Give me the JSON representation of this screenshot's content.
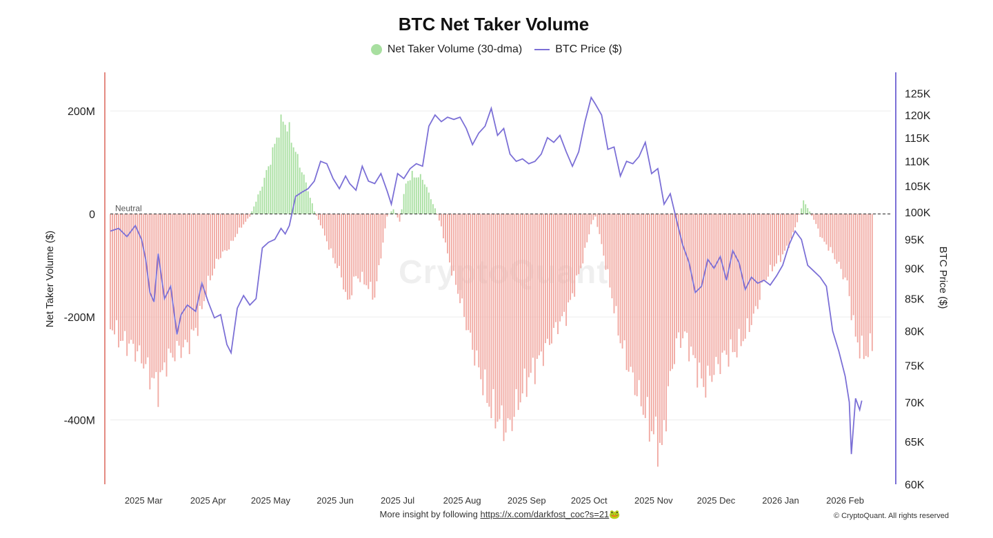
{
  "footer": {
    "prefix": "More insight by following",
    "link": "https://x.com/darkfost_coc?s=21",
    "emoji": "🐸",
    "copyright": "© CryptoQuant. All rights reserved"
  },
  "watermark": "CryptoQuant",
  "colors": {
    "positive_bar": "#a8dfa0",
    "negative_bar": "#f1aaa3",
    "price_line": "#7b6fd6",
    "left_axis": "#e48a82",
    "right_axis": "#7b6fd6"
  },
  "chart_data": {
    "type": "bar+line",
    "title": "BTC Net Taker Volume",
    "legend": [
      "Net Taker Volume (30-dma)",
      "BTC Price ($)"
    ],
    "ylabel_left": "Net Taker Volume ($)",
    "ylabel_right": "BTC Price ($)",
    "yticks_left": [
      {
        "value": 200000000,
        "label": "200M"
      },
      {
        "value": 0,
        "label": "0"
      },
      {
        "value": -200000000,
        "label": "-200M"
      },
      {
        "value": -400000000,
        "label": "-400M"
      }
    ],
    "ylim_left": [
      -525000000,
      275000000
    ],
    "yticks_right": [
      {
        "value": 125000,
        "label": "125K"
      },
      {
        "value": 120000,
        "label": "120K"
      },
      {
        "value": 115000,
        "label": "115K"
      },
      {
        "value": 110000,
        "label": "110K"
      },
      {
        "value": 105000,
        "label": "105K"
      },
      {
        "value": 100000,
        "label": "100K"
      },
      {
        "value": 95000,
        "label": "95K"
      },
      {
        "value": 90000,
        "label": "90K"
      },
      {
        "value": 85000,
        "label": "85K"
      },
      {
        "value": 80000,
        "label": "80K"
      },
      {
        "value": 75000,
        "label": "75K"
      },
      {
        "value": 70000,
        "label": "70K"
      },
      {
        "value": 65000,
        "label": "65K"
      },
      {
        "value": 60000,
        "label": "60K"
      }
    ],
    "ylim_right": [
      60000,
      130000
    ],
    "y_right_scale": "log",
    "xlim_days": [
      0,
      375
    ],
    "xticks": [
      {
        "day": 16,
        "label": "2025 Mar"
      },
      {
        "day": 47,
        "label": "2025 Apr"
      },
      {
        "day": 77,
        "label": "2025 May"
      },
      {
        "day": 108,
        "label": "2025 Jun"
      },
      {
        "day": 138,
        "label": "2025 Jul"
      },
      {
        "day": 169,
        "label": "2025 Aug"
      },
      {
        "day": 200,
        "label": "2025 Sep"
      },
      {
        "day": 230,
        "label": "2025 Oct"
      },
      {
        "day": 261,
        "label": "2025 Nov"
      },
      {
        "day": 291,
        "label": "2025 Dec"
      },
      {
        "day": 322,
        "label": "2026 Jan"
      },
      {
        "day": 353,
        "label": "2026 Feb"
      }
    ],
    "neutral_label": "Neutral",
    "net_taker_volume_anchors": [
      [
        0,
        -215000000
      ],
      [
        5,
        -245000000
      ],
      [
        10,
        -255000000
      ],
      [
        15,
        -280000000
      ],
      [
        20,
        -320000000
      ],
      [
        23,
        -335000000
      ],
      [
        27,
        -285000000
      ],
      [
        32,
        -265000000
      ],
      [
        37,
        -255000000
      ],
      [
        42,
        -215000000
      ],
      [
        47,
        -135000000
      ],
      [
        52,
        -85000000
      ],
      [
        57,
        -65000000
      ],
      [
        62,
        -30000000
      ],
      [
        67,
        -5000000
      ],
      [
        72,
        45000000
      ],
      [
        77,
        105000000
      ],
      [
        80,
        150000000
      ],
      [
        83,
        185000000
      ],
      [
        86,
        160000000
      ],
      [
        89,
        120000000
      ],
      [
        94,
        60000000
      ],
      [
        98,
        5000000
      ],
      [
        101,
        -20000000
      ],
      [
        106,
        -75000000
      ],
      [
        111,
        -120000000
      ],
      [
        114,
        -175000000
      ],
      [
        118,
        -120000000
      ],
      [
        122,
        -130000000
      ],
      [
        127,
        -160000000
      ],
      [
        130,
        -80000000
      ],
      [
        133,
        -5000000
      ],
      [
        136,
        10000000
      ],
      [
        139,
        -15000000
      ],
      [
        142,
        60000000
      ],
      [
        145,
        75000000
      ],
      [
        150,
        70000000
      ],
      [
        153,
        40000000
      ],
      [
        156,
        10000000
      ],
      [
        159,
        -25000000
      ],
      [
        163,
        -95000000
      ],
      [
        168,
        -165000000
      ],
      [
        173,
        -245000000
      ],
      [
        178,
        -315000000
      ],
      [
        183,
        -380000000
      ],
      [
        188,
        -405000000
      ],
      [
        191,
        -420000000
      ],
      [
        195,
        -375000000
      ],
      [
        200,
        -325000000
      ],
      [
        205,
        -290000000
      ],
      [
        210,
        -255000000
      ],
      [
        215,
        -215000000
      ],
      [
        219,
        -195000000
      ],
      [
        223,
        -145000000
      ],
      [
        227,
        -90000000
      ],
      [
        231,
        -20000000
      ],
      [
        233,
        -5000000
      ],
      [
        236,
        -60000000
      ],
      [
        240,
        -140000000
      ],
      [
        245,
        -245000000
      ],
      [
        250,
        -310000000
      ],
      [
        255,
        -365000000
      ],
      [
        259,
        -410000000
      ],
      [
        262,
        -435000000
      ],
      [
        265,
        -460000000
      ],
      [
        268,
        -345000000
      ],
      [
        272,
        -250000000
      ],
      [
        276,
        -235000000
      ],
      [
        280,
        -280000000
      ],
      [
        285,
        -335000000
      ],
      [
        290,
        -305000000
      ],
      [
        295,
        -275000000
      ],
      [
        300,
        -265000000
      ],
      [
        305,
        -235000000
      ],
      [
        310,
        -190000000
      ],
      [
        314,
        -130000000
      ],
      [
        318,
        -105000000
      ],
      [
        322,
        -85000000
      ],
      [
        326,
        -60000000
      ],
      [
        330,
        -15000000
      ],
      [
        333,
        25000000
      ],
      [
        336,
        5000000
      ],
      [
        339,
        -20000000
      ],
      [
        342,
        -50000000
      ],
      [
        346,
        -70000000
      ],
      [
        350,
        -100000000
      ],
      [
        354,
        -135000000
      ],
      [
        358,
        -240000000
      ],
      [
        362,
        -275000000
      ],
      [
        366,
        -255000000
      ]
    ],
    "btc_price_anchors": [
      [
        0,
        96500
      ],
      [
        4,
        97000
      ],
      [
        8,
        95500
      ],
      [
        12,
        97500
      ],
      [
        15,
        95000
      ],
      [
        17,
        91500
      ],
      [
        19,
        86000
      ],
      [
        21,
        84500
      ],
      [
        23,
        92500
      ],
      [
        26,
        85000
      ],
      [
        29,
        87000
      ],
      [
        32,
        79500
      ],
      [
        34,
        82500
      ],
      [
        37,
        84000
      ],
      [
        41,
        83000
      ],
      [
        44,
        87500
      ],
      [
        47,
        84500
      ],
      [
        50,
        82000
      ],
      [
        53,
        82500
      ],
      [
        56,
        78000
      ],
      [
        58,
        76800
      ],
      [
        61,
        83500
      ],
      [
        64,
        85500
      ],
      [
        67,
        84000
      ],
      [
        70,
        85000
      ],
      [
        73,
        93500
      ],
      [
        76,
        94500
      ],
      [
        79,
        95000
      ],
      [
        82,
        97000
      ],
      [
        84,
        96000
      ],
      [
        86,
        97500
      ],
      [
        89,
        103000
      ],
      [
        92,
        103800
      ],
      [
        95,
        104500
      ],
      [
        98,
        106000
      ],
      [
        101,
        110000
      ],
      [
        104,
        109500
      ],
      [
        107,
        106500
      ],
      [
        110,
        104500
      ],
      [
        113,
        107000
      ],
      [
        115,
        105500
      ],
      [
        118,
        104200
      ],
      [
        121,
        109000
      ],
      [
        124,
        106000
      ],
      [
        127,
        105500
      ],
      [
        130,
        107500
      ],
      [
        133,
        104000
      ],
      [
        135,
        101500
      ],
      [
        138,
        107500
      ],
      [
        141,
        106500
      ],
      [
        144,
        108500
      ],
      [
        147,
        109500
      ],
      [
        150,
        109000
      ],
      [
        153,
        117500
      ],
      [
        156,
        120000
      ],
      [
        159,
        118500
      ],
      [
        162,
        119500
      ],
      [
        165,
        119000
      ],
      [
        168,
        119500
      ],
      [
        171,
        117000
      ],
      [
        174,
        113500
      ],
      [
        177,
        116000
      ],
      [
        180,
        117500
      ],
      [
        183,
        121500
      ],
      [
        186,
        115500
      ],
      [
        189,
        117000
      ],
      [
        192,
        111500
      ],
      [
        195,
        110000
      ],
      [
        198,
        110500
      ],
      [
        201,
        109500
      ],
      [
        204,
        110000
      ],
      [
        207,
        111500
      ],
      [
        210,
        115000
      ],
      [
        213,
        114000
      ],
      [
        216,
        115500
      ],
      [
        219,
        112000
      ],
      [
        222,
        109000
      ],
      [
        225,
        112000
      ],
      [
        228,
        118500
      ],
      [
        231,
        124000
      ],
      [
        233,
        122500
      ],
      [
        236,
        120000
      ],
      [
        239,
        112500
      ],
      [
        242,
        113000
      ],
      [
        245,
        107000
      ],
      [
        248,
        110000
      ],
      [
        251,
        109500
      ],
      [
        254,
        111000
      ],
      [
        257,
        114000
      ],
      [
        260,
        107500
      ],
      [
        263,
        108500
      ],
      [
        266,
        101500
      ],
      [
        269,
        103500
      ],
      [
        272,
        98500
      ],
      [
        275,
        94000
      ],
      [
        278,
        91000
      ],
      [
        281,
        86000
      ],
      [
        284,
        87000
      ],
      [
        287,
        91500
      ],
      [
        290,
        90000
      ],
      [
        293,
        92000
      ],
      [
        296,
        88000
      ],
      [
        299,
        93000
      ],
      [
        302,
        91000
      ],
      [
        305,
        86500
      ],
      [
        308,
        88500
      ],
      [
        311,
        87500
      ],
      [
        314,
        88000
      ],
      [
        317,
        87200
      ],
      [
        320,
        88700
      ],
      [
        323,
        90500
      ],
      [
        326,
        94000
      ],
      [
        329,
        96500
      ],
      [
        332,
        95000
      ],
      [
        335,
        90500
      ],
      [
        338,
        89500
      ],
      [
        341,
        88500
      ],
      [
        344,
        87000
      ],
      [
        347,
        80000
      ],
      [
        350,
        77000
      ],
      [
        353,
        73500
      ],
      [
        355,
        70000
      ],
      [
        356,
        63500
      ],
      [
        358,
        70500
      ],
      [
        360,
        69000
      ],
      [
        361,
        70200
      ]
    ]
  }
}
